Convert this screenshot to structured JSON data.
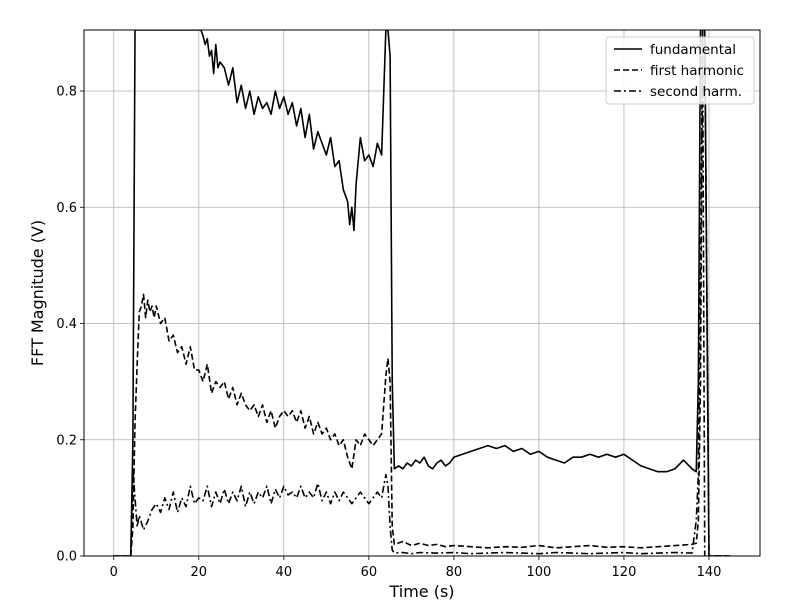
{
  "chart_data": {
    "type": "line",
    "title": "",
    "xlabel": "Time (s)",
    "ylabel": "FFT Magnitude (V)",
    "xlim": [
      -7,
      152
    ],
    "ylim": [
      0,
      0.905
    ],
    "xticks": [
      0,
      20,
      40,
      60,
      80,
      100,
      120,
      140
    ],
    "yticks": [
      0.0,
      0.2,
      0.4,
      0.6,
      0.8
    ],
    "xtick_labels": [
      "0",
      "20",
      "40",
      "60",
      "80",
      "100",
      "120",
      "140"
    ],
    "ytick_labels": [
      "0.0",
      "0.2",
      "0.4",
      "0.6",
      "0.8"
    ],
    "grid": true,
    "legend_position": "top-right",
    "line_color": "#000000",
    "series": [
      {
        "name": "fundamental",
        "style": "solid",
        "x": [
          0,
          4,
          4.5,
          5,
          20.5,
          21,
          21.5,
          22,
          22.5,
          23,
          23.5,
          24,
          24.5,
          25,
          26,
          27,
          28,
          29,
          30,
          31,
          32,
          33,
          34,
          35,
          36,
          37,
          38,
          39,
          40,
          41,
          42,
          43,
          44,
          45,
          46,
          47,
          48,
          49,
          50,
          51,
          52,
          53,
          54,
          55,
          55.5,
          56,
          56.5,
          57,
          58,
          59,
          60,
          61,
          62,
          63,
          64,
          64.5,
          65,
          65.5,
          66,
          67,
          68,
          69,
          70,
          71,
          72,
          73,
          74,
          75,
          76,
          77,
          78,
          79,
          80,
          82,
          84,
          86,
          88,
          90,
          92,
          94,
          96,
          98,
          100,
          102,
          104,
          106,
          108,
          110,
          112,
          114,
          116,
          118,
          120,
          122,
          124,
          126,
          128,
          130,
          132,
          134,
          136,
          137,
          137.5,
          138,
          138.5,
          139,
          140,
          141,
          145
        ],
        "values": [
          0.0,
          0.0,
          0.2,
          0.905,
          0.905,
          0.895,
          0.88,
          0.89,
          0.86,
          0.87,
          0.83,
          0.88,
          0.84,
          0.85,
          0.84,
          0.81,
          0.84,
          0.78,
          0.81,
          0.77,
          0.8,
          0.76,
          0.79,
          0.77,
          0.78,
          0.76,
          0.8,
          0.77,
          0.79,
          0.76,
          0.78,
          0.74,
          0.77,
          0.72,
          0.76,
          0.7,
          0.73,
          0.71,
          0.69,
          0.72,
          0.67,
          0.68,
          0.63,
          0.61,
          0.57,
          0.6,
          0.56,
          0.64,
          0.72,
          0.68,
          0.69,
          0.67,
          0.71,
          0.69,
          0.905,
          0.905,
          0.86,
          0.3,
          0.15,
          0.155,
          0.15,
          0.16,
          0.155,
          0.165,
          0.16,
          0.17,
          0.155,
          0.15,
          0.16,
          0.165,
          0.155,
          0.16,
          0.17,
          0.175,
          0.18,
          0.185,
          0.19,
          0.185,
          0.19,
          0.18,
          0.185,
          0.175,
          0.18,
          0.17,
          0.165,
          0.16,
          0.17,
          0.17,
          0.175,
          0.17,
          0.175,
          0.17,
          0.175,
          0.165,
          0.155,
          0.15,
          0.145,
          0.145,
          0.15,
          0.165,
          0.15,
          0.145,
          0.3,
          0.905,
          0.905,
          0.905,
          0.0,
          0.0,
          0.0
        ]
      },
      {
        "name": "first harmonic",
        "style": "dashed",
        "x": [
          0,
          4,
          4.5,
          5,
          5.5,
          6,
          6.5,
          7,
          7.5,
          8,
          8.5,
          9,
          9.5,
          10,
          11,
          12,
          13,
          14,
          15,
          16,
          17,
          18,
          19,
          20,
          21,
          22,
          23,
          24,
          25,
          26,
          27,
          28,
          29,
          30,
          31,
          32,
          33,
          34,
          35,
          36,
          37,
          38,
          39,
          40,
          41,
          42,
          43,
          44,
          45,
          46,
          47,
          48,
          49,
          50,
          51,
          52,
          53,
          54,
          55,
          56,
          57,
          58,
          59,
          60,
          61,
          62,
          63,
          64,
          64.5,
          65,
          65.5,
          66,
          68,
          70,
          72,
          74,
          76,
          78,
          80,
          84,
          88,
          92,
          96,
          100,
          104,
          108,
          112,
          116,
          120,
          124,
          128,
          132,
          136,
          137,
          137.5,
          138,
          138.5,
          139,
          140,
          141,
          145
        ],
        "values": [
          0.0,
          0.0,
          0.05,
          0.23,
          0.33,
          0.42,
          0.43,
          0.45,
          0.41,
          0.44,
          0.42,
          0.43,
          0.41,
          0.43,
          0.4,
          0.41,
          0.37,
          0.38,
          0.35,
          0.36,
          0.33,
          0.36,
          0.32,
          0.32,
          0.3,
          0.33,
          0.28,
          0.3,
          0.29,
          0.3,
          0.27,
          0.29,
          0.26,
          0.28,
          0.26,
          0.25,
          0.26,
          0.24,
          0.26,
          0.23,
          0.25,
          0.22,
          0.24,
          0.25,
          0.24,
          0.25,
          0.23,
          0.25,
          0.22,
          0.24,
          0.21,
          0.23,
          0.21,
          0.22,
          0.2,
          0.21,
          0.19,
          0.2,
          0.17,
          0.15,
          0.2,
          0.19,
          0.21,
          0.2,
          0.19,
          0.2,
          0.21,
          0.31,
          0.34,
          0.3,
          0.05,
          0.02,
          0.025,
          0.018,
          0.022,
          0.018,
          0.02,
          0.016,
          0.018,
          0.016,
          0.014,
          0.016,
          0.015,
          0.018,
          0.014,
          0.016,
          0.018,
          0.015,
          0.016,
          0.014,
          0.016,
          0.018,
          0.02,
          0.022,
          0.06,
          0.3,
          0.905,
          0.905,
          0.0,
          0.0,
          0.0
        ]
      },
      {
        "name": "second harm.",
        "style": "dashdot",
        "x": [
          0,
          4,
          4.5,
          5,
          5.5,
          6,
          7,
          8,
          9,
          10,
          11,
          12,
          13,
          14,
          15,
          16,
          17,
          18,
          19,
          20,
          21,
          22,
          23,
          24,
          25,
          26,
          27,
          28,
          29,
          30,
          31,
          32,
          33,
          34,
          35,
          36,
          37,
          38,
          39,
          40,
          41,
          42,
          43,
          44,
          45,
          46,
          47,
          48,
          49,
          50,
          51,
          52,
          53,
          54,
          55,
          56,
          57,
          58,
          59,
          60,
          61,
          62,
          63,
          64,
          64.5,
          65,
          65.5,
          66,
          68,
          70,
          72,
          76,
          80,
          84,
          88,
          92,
          96,
          100,
          104,
          108,
          112,
          116,
          120,
          124,
          128,
          132,
          136,
          137,
          137.5,
          138,
          138.5,
          139,
          140,
          141,
          145
        ],
        "values": [
          0.0,
          0.0,
          0.15,
          0.1,
          0.05,
          0.07,
          0.045,
          0.06,
          0.08,
          0.09,
          0.075,
          0.1,
          0.08,
          0.11,
          0.075,
          0.1,
          0.085,
          0.12,
          0.09,
          0.1,
          0.095,
          0.12,
          0.085,
          0.11,
          0.09,
          0.115,
          0.09,
          0.11,
          0.095,
          0.12,
          0.085,
          0.11,
          0.09,
          0.11,
          0.1,
          0.12,
          0.09,
          0.115,
          0.1,
          0.12,
          0.105,
          0.11,
          0.1,
          0.12,
          0.1,
          0.11,
          0.1,
          0.125,
          0.095,
          0.11,
          0.09,
          0.11,
          0.095,
          0.11,
          0.1,
          0.09,
          0.1,
          0.11,
          0.1,
          0.09,
          0.1,
          0.11,
          0.1,
          0.14,
          0.12,
          0.05,
          0.01,
          0.005,
          0.006,
          0.004,
          0.006,
          0.005,
          0.006,
          0.004,
          0.005,
          0.006,
          0.005,
          0.004,
          0.006,
          0.005,
          0.004,
          0.005,
          0.006,
          0.004,
          0.005,
          0.006,
          0.005,
          0.06,
          0.14,
          0.5,
          0.905,
          0.0,
          0.0,
          0.0,
          0.0
        ]
      }
    ]
  }
}
